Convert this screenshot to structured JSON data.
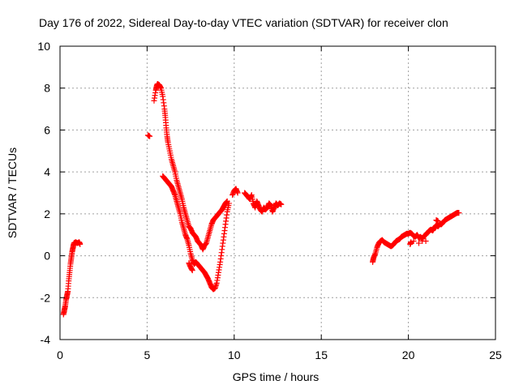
{
  "chart_data": {
    "type": "scatter",
    "title": "Day 176 of 2022, Sidereal Day-to-day VTEC variation (SDTVAR) for receiver clon",
    "xlabel": "GPS time / hours",
    "ylabel": "SDTVAR / TECUs",
    "xlim": [
      0,
      25
    ],
    "ylim": [
      -4,
      10
    ],
    "xticks": [
      0,
      5,
      10,
      15,
      20,
      25
    ],
    "yticks": [
      -4,
      -2,
      0,
      2,
      4,
      6,
      8,
      10
    ],
    "grid": true,
    "marker": "+",
    "color": "#ff0000",
    "series": [
      {
        "name": "SDTVAR",
        "points": [
          [
            0.2,
            -2.8
          ],
          [
            0.25,
            -2.6
          ],
          [
            0.3,
            -2.4
          ],
          [
            0.35,
            -2.1
          ],
          [
            0.4,
            -1.9
          ],
          [
            0.45,
            -1.7
          ],
          [
            0.5,
            -1.2
          ],
          [
            0.55,
            -0.8
          ],
          [
            0.6,
            -0.4
          ],
          [
            0.65,
            -0.1
          ],
          [
            0.7,
            0.2
          ],
          [
            0.75,
            0.4
          ],
          [
            0.8,
            0.6
          ],
          [
            0.9,
            0.65
          ],
          [
            1.0,
            0.6
          ],
          [
            1.1,
            0.65
          ],
          [
            1.15,
            0.55
          ],
          [
            5.05,
            5.75
          ],
          [
            5.15,
            5.7
          ],
          [
            5.4,
            7.4
          ],
          [
            5.5,
            7.9
          ],
          [
            5.55,
            8.1
          ],
          [
            5.6,
            8.2
          ],
          [
            5.7,
            8.15
          ],
          [
            5.8,
            8.0
          ],
          [
            5.9,
            7.6
          ],
          [
            6.0,
            7.0
          ],
          [
            6.05,
            6.6
          ],
          [
            6.1,
            6.1
          ],
          [
            6.15,
            5.7
          ],
          [
            6.2,
            5.4
          ],
          [
            6.3,
            5.0
          ],
          [
            6.4,
            4.6
          ],
          [
            6.5,
            4.3
          ],
          [
            6.6,
            4.0
          ],
          [
            6.7,
            3.6
          ],
          [
            6.8,
            3.3
          ],
          [
            6.9,
            3.0
          ],
          [
            7.0,
            2.7
          ],
          [
            7.1,
            2.3
          ],
          [
            7.2,
            2.0
          ],
          [
            7.3,
            1.7
          ],
          [
            7.4,
            1.4
          ],
          [
            7.5,
            1.3
          ],
          [
            7.6,
            1.1
          ],
          [
            7.7,
            1.0
          ],
          [
            7.8,
            0.9
          ],
          [
            7.9,
            0.7
          ],
          [
            8.0,
            0.6
          ],
          [
            8.1,
            0.5
          ],
          [
            8.2,
            0.3
          ],
          [
            8.3,
            0.5
          ],
          [
            8.4,
            0.6
          ],
          [
            8.5,
            0.9
          ],
          [
            8.6,
            1.2
          ],
          [
            8.7,
            1.5
          ],
          [
            8.8,
            1.7
          ],
          [
            8.9,
            1.8
          ],
          [
            9.0,
            1.9
          ],
          [
            9.1,
            2.0
          ],
          [
            9.2,
            2.1
          ],
          [
            9.3,
            2.2
          ],
          [
            9.4,
            2.35
          ],
          [
            9.5,
            2.5
          ],
          [
            9.6,
            2.6
          ],
          [
            5.9,
            3.8
          ],
          [
            6.0,
            3.7
          ],
          [
            6.1,
            3.6
          ],
          [
            6.2,
            3.5
          ],
          [
            6.3,
            3.4
          ],
          [
            6.4,
            3.3
          ],
          [
            6.5,
            3.1
          ],
          [
            6.6,
            2.9
          ],
          [
            6.7,
            2.6
          ],
          [
            6.8,
            2.3
          ],
          [
            6.9,
            2.0
          ],
          [
            7.0,
            1.6
          ],
          [
            7.1,
            1.3
          ],
          [
            7.2,
            1.0
          ],
          [
            7.3,
            0.8
          ],
          [
            7.4,
            0.5
          ],
          [
            7.5,
            0.1
          ],
          [
            7.6,
            -0.2
          ],
          [
            7.7,
            -0.4
          ],
          [
            7.8,
            -0.3
          ],
          [
            7.9,
            -0.4
          ],
          [
            8.0,
            -0.5
          ],
          [
            8.1,
            -0.6
          ],
          [
            8.2,
            -0.7
          ],
          [
            8.3,
            -0.8
          ],
          [
            8.4,
            -0.95
          ],
          [
            8.5,
            -1.1
          ],
          [
            8.6,
            -1.3
          ],
          [
            8.7,
            -1.5
          ],
          [
            8.8,
            -1.6
          ],
          [
            8.9,
            -1.55
          ],
          [
            9.0,
            -1.3
          ],
          [
            9.1,
            -0.8
          ],
          [
            9.2,
            -0.3
          ],
          [
            9.3,
            0.3
          ],
          [
            9.4,
            0.9
          ],
          [
            9.5,
            1.5
          ],
          [
            9.6,
            2.1
          ],
          [
            9.7,
            2.5
          ],
          [
            7.4,
            -0.35
          ],
          [
            7.5,
            -0.55
          ],
          [
            7.6,
            -0.7
          ],
          [
            9.9,
            2.9
          ],
          [
            10.0,
            3.1
          ],
          [
            10.1,
            3.2
          ],
          [
            10.2,
            3.0
          ],
          [
            10.6,
            3.0
          ],
          [
            10.7,
            2.9
          ],
          [
            10.8,
            2.8
          ],
          [
            10.9,
            2.7
          ],
          [
            11.0,
            2.9
          ],
          [
            11.1,
            2.5
          ],
          [
            11.2,
            2.3
          ],
          [
            11.3,
            2.6
          ],
          [
            11.4,
            2.4
          ],
          [
            11.5,
            2.2
          ],
          [
            11.6,
            2.1
          ],
          [
            11.7,
            2.3
          ],
          [
            11.8,
            2.2
          ],
          [
            11.9,
            2.3
          ],
          [
            12.0,
            2.5
          ],
          [
            12.1,
            2.4
          ],
          [
            12.2,
            2.1
          ],
          [
            12.3,
            2.3
          ],
          [
            12.4,
            2.5
          ],
          [
            12.5,
            2.4
          ],
          [
            12.6,
            2.5
          ],
          [
            12.7,
            2.45
          ],
          [
            17.95,
            -0.3
          ],
          [
            18.0,
            -0.1
          ],
          [
            18.1,
            0.1
          ],
          [
            18.2,
            0.4
          ],
          [
            18.3,
            0.6
          ],
          [
            18.4,
            0.7
          ],
          [
            18.5,
            0.75
          ],
          [
            18.6,
            0.65
          ],
          [
            18.7,
            0.6
          ],
          [
            18.8,
            0.55
          ],
          [
            18.9,
            0.5
          ],
          [
            19.0,
            0.45
          ],
          [
            19.1,
            0.5
          ],
          [
            19.2,
            0.6
          ],
          [
            19.3,
            0.7
          ],
          [
            19.4,
            0.75
          ],
          [
            19.5,
            0.8
          ],
          [
            19.6,
            0.9
          ],
          [
            19.7,
            0.95
          ],
          [
            19.8,
            1.0
          ],
          [
            19.9,
            1.05
          ],
          [
            20.0,
            1.05
          ],
          [
            20.1,
            1.1
          ],
          [
            20.2,
            1.05
          ],
          [
            20.3,
            0.95
          ],
          [
            20.4,
            0.9
          ],
          [
            20.5,
            1.0
          ],
          [
            20.6,
            0.85
          ],
          [
            20.7,
            0.9
          ],
          [
            20.8,
            0.8
          ],
          [
            20.9,
            0.95
          ],
          [
            21.0,
            1.0
          ],
          [
            21.1,
            1.1
          ],
          [
            21.2,
            1.2
          ],
          [
            21.3,
            1.25
          ],
          [
            21.4,
            1.2
          ],
          [
            21.5,
            1.35
          ],
          [
            21.6,
            1.45
          ],
          [
            21.7,
            1.4
          ],
          [
            21.8,
            1.5
          ],
          [
            21.9,
            1.5
          ],
          [
            22.0,
            1.6
          ],
          [
            22.1,
            1.7
          ],
          [
            22.2,
            1.75
          ],
          [
            22.3,
            1.8
          ],
          [
            22.4,
            1.85
          ],
          [
            22.5,
            1.9
          ],
          [
            22.6,
            1.95
          ],
          [
            22.7,
            2.0
          ],
          [
            22.8,
            2.05
          ],
          [
            22.9,
            2.05
          ],
          [
            20.1,
            0.55
          ],
          [
            20.15,
            0.65
          ],
          [
            20.3,
            0.7
          ],
          [
            20.6,
            0.6
          ],
          [
            20.8,
            0.7
          ],
          [
            21.0,
            0.7
          ],
          [
            21.6,
            1.7
          ],
          [
            21.7,
            1.65
          ]
        ]
      }
    ]
  }
}
